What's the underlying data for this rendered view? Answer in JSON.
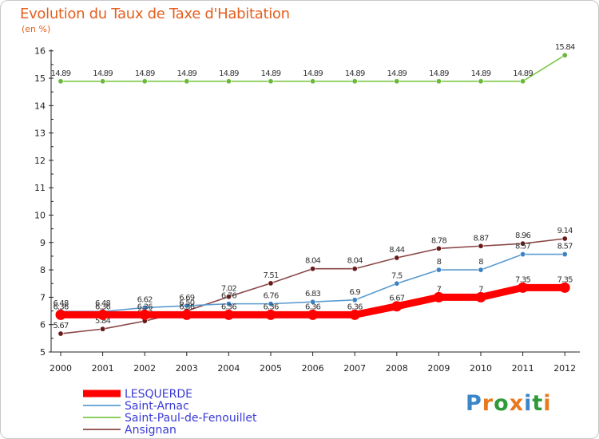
{
  "title": "Evolution du Taux de Taxe d'Habitation",
  "unit": "(en %)",
  "logo": {
    "text": "Proxiti",
    "colors": [
      "#3a86c8",
      "#e8791f",
      "#2e9a3a",
      "#e8791f",
      "#3a86c8",
      "#2e9a3a",
      "#e8791f"
    ]
  },
  "chart_data": {
    "type": "line",
    "title": "Evolution du Taux de Taxe d'Habitation",
    "ylabel": "(en %)",
    "xlabel": "",
    "ylim": [
      5,
      16
    ],
    "yticks": [
      "5",
      "6",
      "7",
      "8",
      "9",
      "10",
      "11",
      "12",
      "13",
      "14",
      "15",
      "16"
    ],
    "categories": [
      "2000",
      "2001",
      "2002",
      "2003",
      "2004",
      "2005",
      "2006",
      "2007",
      "2008",
      "2009",
      "2010",
      "2011",
      "2012"
    ],
    "grid": false,
    "legend_position": "bottom-left",
    "series": [
      {
        "name": "Saint-Paul-de-Fenouillet",
        "color": "#7cc84a",
        "marker": "#6ab83a",
        "values": [
          14.89,
          14.89,
          14.89,
          14.89,
          14.89,
          14.89,
          14.89,
          14.89,
          14.89,
          14.89,
          14.89,
          14.89,
          15.84
        ],
        "labels": [
          "14.89",
          "14.89",
          "14.89",
          "14.89",
          "14.89",
          "14.89",
          "14.89",
          "14.89",
          "14.89",
          "14.89",
          "14.89",
          "14.89",
          "15.84"
        ]
      },
      {
        "name": "Ansignan",
        "color": "#8a4646",
        "marker": "#6b1a1a",
        "values": [
          5.67,
          5.84,
          6.13,
          6.5,
          7.02,
          7.51,
          8.04,
          8.04,
          8.44,
          8.78,
          8.87,
          8.96,
          9.14
        ],
        "labels": [
          "5.67",
          "5.84",
          "6.13",
          "6.50",
          "7.02",
          "7.51",
          "8.04",
          "8.04",
          "8.44",
          "8.78",
          "8.87",
          "8.96",
          "9.14"
        ]
      },
      {
        "name": "Saint-Arnac",
        "color": "#5b9bd0",
        "marker": "#3c82c4",
        "values": [
          6.48,
          6.48,
          6.62,
          6.69,
          6.76,
          6.76,
          6.83,
          6.9,
          7.5,
          8,
          8,
          8.57,
          8.57
        ],
        "labels": [
          "6.48",
          "6.48",
          "6.62",
          "6.69",
          "6.76",
          "6.76",
          "6.83",
          "6.9",
          "7.5",
          "8",
          "8",
          "8.57",
          "8.57"
        ]
      },
      {
        "name": "LESQUERDE",
        "color": "#ff0000",
        "marker": "#ff0000",
        "values": [
          6.36,
          6.36,
          6.36,
          6.36,
          6.36,
          6.36,
          6.36,
          6.36,
          6.67,
          7,
          7,
          7.35,
          7.35
        ],
        "labels": [
          "6.36",
          "6.36",
          "6.36",
          "6.36",
          "6.36",
          "6.36",
          "6.36",
          "6.36",
          "6.67",
          "7",
          "7",
          "7.35",
          "7.35"
        ]
      }
    ],
    "legend": [
      "LESQUERDE",
      "Saint-Arnac",
      "Saint-Paul-de-Fenouillet",
      "Ansignan"
    ]
  }
}
